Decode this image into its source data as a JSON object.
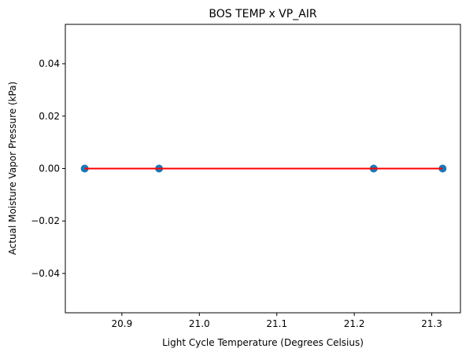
{
  "chart_data": {
    "type": "scatter",
    "title": "BOS TEMP x VP_AIR",
    "xlabel": "Light Cycle Temperature (Degrees Celsius)",
    "ylabel": "Actual Moisture Vapor Pressure (kPa)",
    "xlim": [
      20.827,
      21.337
    ],
    "ylim": [
      -0.055,
      0.055
    ],
    "xticks": [
      20.9,
      21.0,
      21.1,
      21.2,
      21.3
    ],
    "xtick_labels": [
      "20.9",
      "21.0",
      "21.1",
      "21.2",
      "21.3"
    ],
    "yticks": [
      -0.04,
      -0.02,
      0.0,
      0.02,
      0.04
    ],
    "ytick_labels": [
      "−0.04",
      "−0.02",
      "0.00",
      "0.02",
      "0.04"
    ],
    "grid": false,
    "series": [
      {
        "kind": "scatter",
        "color": "#1f77b4",
        "points": [
          {
            "x": 20.852,
            "y": 0.0
          },
          {
            "x": 20.948,
            "y": 0.0
          },
          {
            "x": 21.225,
            "y": 0.0
          },
          {
            "x": 21.314,
            "y": 0.0
          }
        ]
      },
      {
        "kind": "line",
        "color": "#ff0000",
        "points": [
          {
            "x": 20.852,
            "y": 0.0
          },
          {
            "x": 21.314,
            "y": 0.0
          }
        ]
      }
    ]
  }
}
